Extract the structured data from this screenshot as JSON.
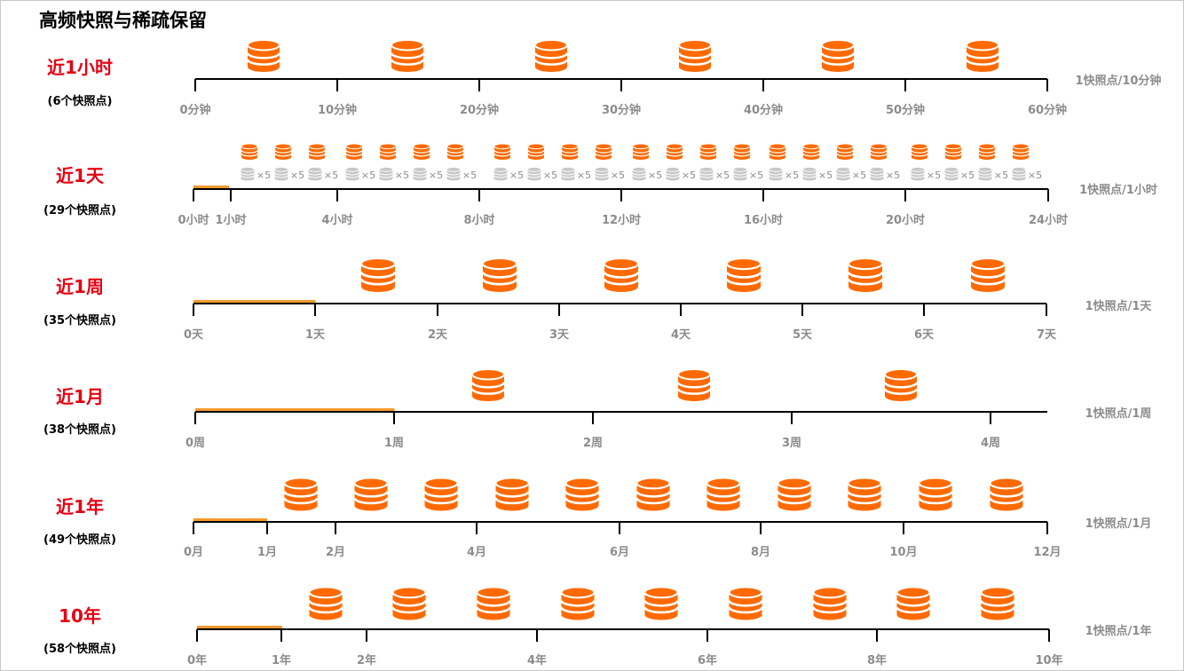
{
  "title": "高频快照与稀疏保留",
  "colors": {
    "accent": "#ff6a00",
    "label_red": "#e60012",
    "bar": "#f39a2e",
    "axis": "#000000",
    "tick_text": "#8c8c8c",
    "grey_icon": "#c8c8c8"
  },
  "icons": {
    "snapshot": "database-icon",
    "grey_snapshot": "database-icon-grey"
  },
  "rows": [
    {
      "label": "近1小时",
      "count": "(6个快照点)",
      "rate": "1快照点/10分钟",
      "ticks": [
        "0分钟",
        "10分钟",
        "20分钟",
        "30分钟",
        "40分钟",
        "50分钟",
        "60分钟"
      ],
      "retained_fraction": 0,
      "snapshots": 6
    },
    {
      "label": "近1天",
      "count": "(29个快照点)",
      "rate": "1快照点/1小时",
      "ticks": [
        "0小时",
        "1小时",
        "4小时",
        "8小时",
        "12小时",
        "16小时",
        "20小时",
        "24小时"
      ],
      "retained_fraction": 0.0417,
      "snapshots": 23,
      "grey_multiplier": "×5"
    },
    {
      "label": "近1周",
      "count": "(35个快照点)",
      "rate": "1快照点/1天",
      "ticks": [
        "0天",
        "1天",
        "2天",
        "3天",
        "4天",
        "5天",
        "6天",
        "7天"
      ],
      "retained_fraction": 0.1429,
      "snapshots": 6
    },
    {
      "label": "近1月",
      "count": "(38个快照点)",
      "rate": "1快照点/1周",
      "ticks": [
        "0周",
        "1周",
        "2周",
        "3周",
        "4周"
      ],
      "retained_fraction": 0.2339,
      "snapshots": 3
    },
    {
      "label": "近1年",
      "count": "(49个快照点)",
      "rate": "1快照点/1月",
      "ticks": [
        "0月",
        "1月",
        "2月",
        "4月",
        "6月",
        "8月",
        "10月",
        "12月"
      ],
      "retained_fraction": 0.0862,
      "snapshots": 11
    },
    {
      "label": "10年",
      "count": "(58个快照点)",
      "rate": "1快照点/1年",
      "ticks": [
        "0年",
        "1年",
        "2年",
        "4年",
        "6年",
        "8年",
        "10年"
      ],
      "retained_fraction": 0.0999,
      "snapshots": 9
    }
  ]
}
